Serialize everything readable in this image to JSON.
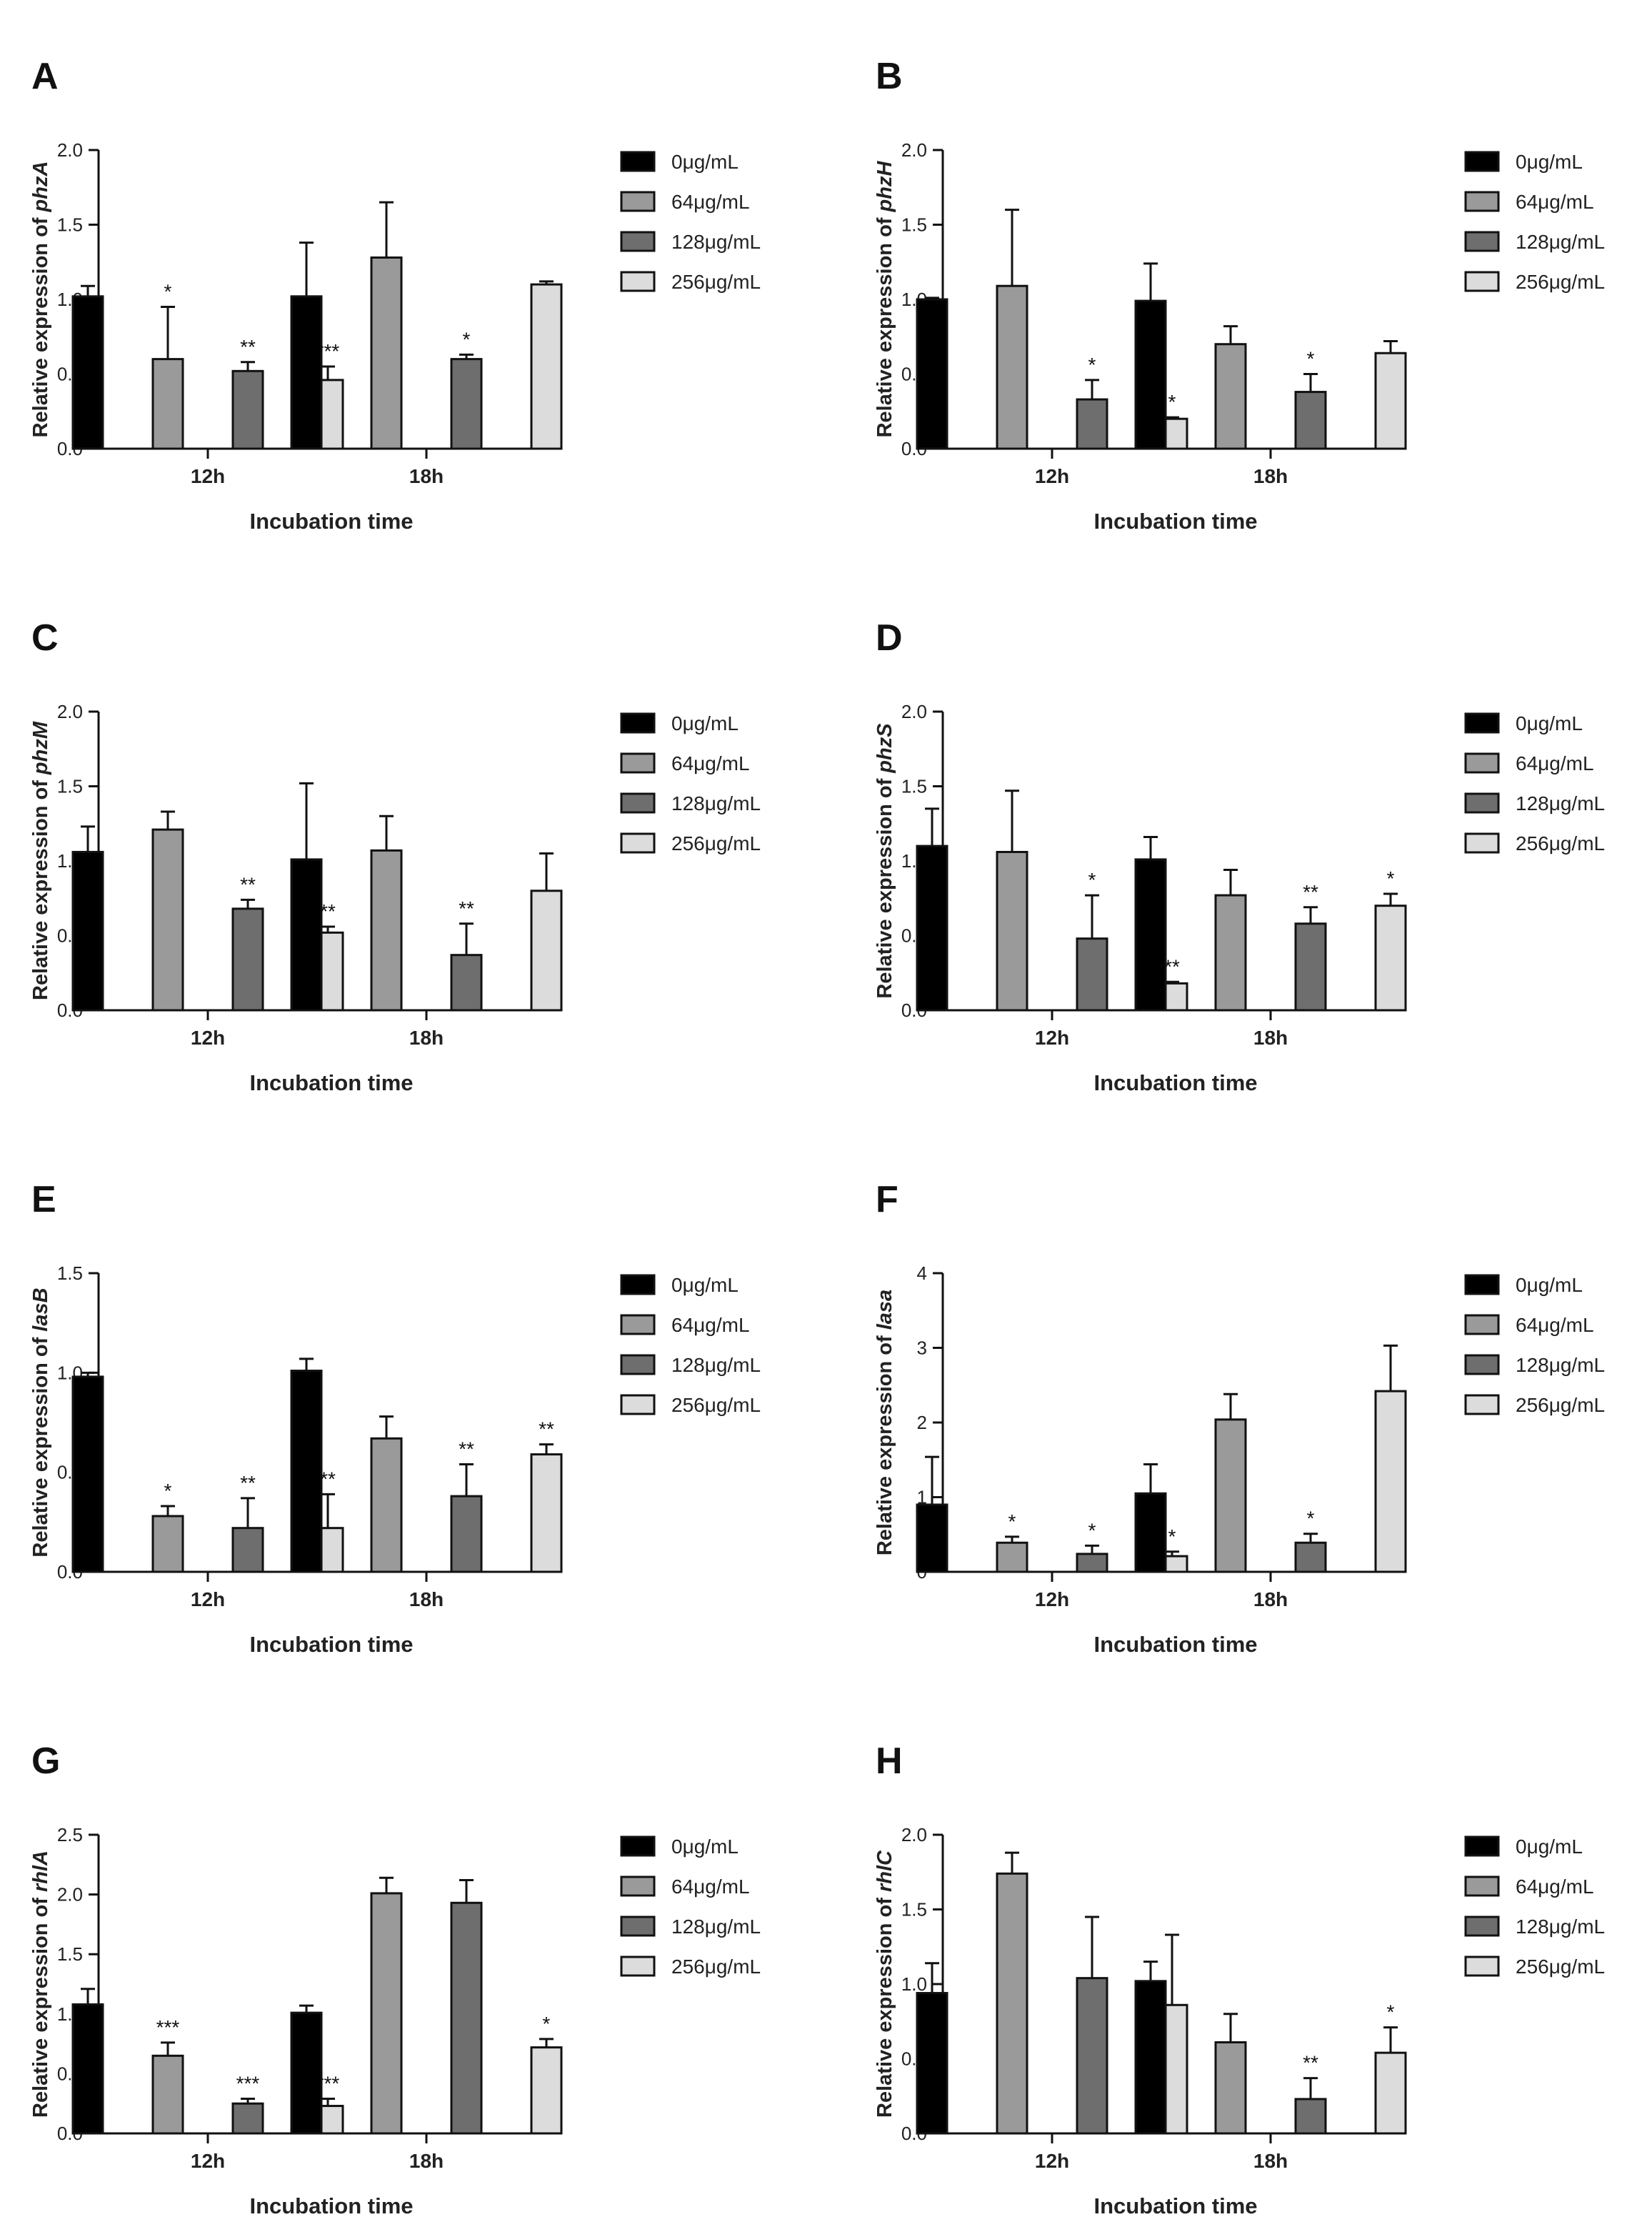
{
  "figure": {
    "type": "multi-panel bar chart"
  },
  "chart_data": [
    {
      "panel": "A",
      "type": "bar",
      "ylabel_prefix": "Relative expression of ",
      "gene": "phzA",
      "xlabel": "Incubation time",
      "categories": [
        "12h",
        "18h"
      ],
      "ylim": [
        0,
        2.0
      ],
      "yticks": [
        "0.0",
        "0.5",
        "1.0",
        "1.5",
        "2.0"
      ],
      "legend": [
        "0μg/mL",
        "64μg/mL",
        "128μg/mL",
        "256μg/mL"
      ],
      "series": [
        {
          "name": "0μg/mL",
          "color": "#000000",
          "values": [
            1.02,
            1.02
          ],
          "errors": [
            0.07,
            0.36
          ],
          "sig": [
            "",
            ""
          ]
        },
        {
          "name": "64μg/mL",
          "color": "#9a9a9a",
          "values": [
            0.6,
            1.28
          ],
          "errors": [
            0.35,
            0.37
          ],
          "sig": [
            "*",
            ""
          ]
        },
        {
          "name": "128μg/mL",
          "color": "#6e6e6e",
          "values": [
            0.52,
            0.6
          ],
          "errors": [
            0.06,
            0.03
          ],
          "sig": [
            "**",
            "*"
          ]
        },
        {
          "name": "256μg/mL",
          "color": "#dcdcdc",
          "values": [
            0.46,
            1.1
          ],
          "errors": [
            0.09,
            0.02
          ],
          "sig": [
            "***",
            ""
          ]
        }
      ]
    },
    {
      "panel": "B",
      "type": "bar",
      "ylabel_prefix": "Relative expression of ",
      "gene": "phzH",
      "xlabel": "Incubation time",
      "categories": [
        "12h",
        "18h"
      ],
      "ylim": [
        0,
        2.0
      ],
      "yticks": [
        "0.0",
        "0.5",
        "1.0",
        "1.5",
        "2.0"
      ],
      "legend": [
        "0μg/mL",
        "64μg/mL",
        "128μg/mL",
        "256μg/mL"
      ],
      "series": [
        {
          "name": "0μg/mL",
          "color": "#000000",
          "values": [
            1.0,
            0.99
          ],
          "errors": [
            0.01,
            0.25
          ],
          "sig": [
            "",
            ""
          ]
        },
        {
          "name": "64μg/mL",
          "color": "#9a9a9a",
          "values": [
            1.09,
            0.7
          ],
          "errors": [
            0.51,
            0.12
          ],
          "sig": [
            "",
            ""
          ]
        },
        {
          "name": "128μg/mL",
          "color": "#6e6e6e",
          "values": [
            0.33,
            0.38
          ],
          "errors": [
            0.13,
            0.12
          ],
          "sig": [
            "*",
            "*"
          ]
        },
        {
          "name": "256μg/mL",
          "color": "#dcdcdc",
          "values": [
            0.2,
            0.64
          ],
          "errors": [
            0.01,
            0.08
          ],
          "sig": [
            "*",
            ""
          ]
        }
      ]
    },
    {
      "panel": "C",
      "type": "bar",
      "ylabel_prefix": "Relative expression of ",
      "gene": "phzM",
      "xlabel": "Incubation time",
      "categories": [
        "12h",
        "18h"
      ],
      "ylim": [
        0,
        2.0
      ],
      "yticks": [
        "0.0",
        "0.5",
        "1.0",
        "1.5",
        "2.0"
      ],
      "legend": [
        "0μg/mL",
        "64μg/mL",
        "128μg/mL",
        "256μg/mL"
      ],
      "series": [
        {
          "name": "0μg/mL",
          "color": "#000000",
          "values": [
            1.06,
            1.01
          ],
          "errors": [
            0.17,
            0.51
          ],
          "sig": [
            "",
            ""
          ]
        },
        {
          "name": "64μg/mL",
          "color": "#9a9a9a",
          "values": [
            1.21,
            1.07
          ],
          "errors": [
            0.12,
            0.23
          ],
          "sig": [
            "",
            ""
          ]
        },
        {
          "name": "128μg/mL",
          "color": "#6e6e6e",
          "values": [
            0.68,
            0.37
          ],
          "errors": [
            0.06,
            0.21
          ],
          "sig": [
            "**",
            "**"
          ]
        },
        {
          "name": "256μg/mL",
          "color": "#dcdcdc",
          "values": [
            0.52,
            0.8
          ],
          "errors": [
            0.04,
            0.25
          ],
          "sig": [
            "**",
            ""
          ]
        }
      ]
    },
    {
      "panel": "D",
      "type": "bar",
      "ylabel_prefix": "Relative expression of ",
      "gene": "phzS",
      "xlabel": "Incubation time",
      "categories": [
        "12h",
        "18h"
      ],
      "ylim": [
        0,
        2.0
      ],
      "yticks": [
        "0.0",
        "0.5",
        "1.0",
        "1.5",
        "2.0"
      ],
      "legend": [
        "0μg/mL",
        "64μg/mL",
        "128μg/mL",
        "256μg/mL"
      ],
      "series": [
        {
          "name": "0μg/mL",
          "color": "#000000",
          "values": [
            1.1,
            1.01
          ],
          "errors": [
            0.25,
            0.15
          ],
          "sig": [
            "",
            ""
          ]
        },
        {
          "name": "64μg/mL",
          "color": "#9a9a9a",
          "values": [
            1.06,
            0.77
          ],
          "errors": [
            0.41,
            0.17
          ],
          "sig": [
            "",
            ""
          ]
        },
        {
          "name": "128μg/mL",
          "color": "#6e6e6e",
          "values": [
            0.48,
            0.58
          ],
          "errors": [
            0.29,
            0.11
          ],
          "sig": [
            "*",
            "**"
          ]
        },
        {
          "name": "256μg/mL",
          "color": "#dcdcdc",
          "values": [
            0.18,
            0.7
          ],
          "errors": [
            0.01,
            0.08
          ],
          "sig": [
            "**",
            "*"
          ]
        }
      ]
    },
    {
      "panel": "E",
      "type": "bar",
      "ylabel_prefix": "Relative expression of ",
      "gene": "lasB",
      "xlabel": "Incubation time",
      "categories": [
        "12h",
        "18h"
      ],
      "ylim": [
        0,
        1.5
      ],
      "yticks": [
        "0.0",
        "0.5",
        "1.0",
        "1.5"
      ],
      "legend": [
        "0μg/mL",
        "64μg/mL",
        "128μg/mL",
        "256μg/mL"
      ],
      "series": [
        {
          "name": "0μg/mL",
          "color": "#000000",
          "values": [
            0.98,
            1.01
          ],
          "errors": [
            0.02,
            0.06
          ],
          "sig": [
            "",
            ""
          ]
        },
        {
          "name": "64μg/mL",
          "color": "#9a9a9a",
          "values": [
            0.28,
            0.67
          ],
          "errors": [
            0.05,
            0.11
          ],
          "sig": [
            "*",
            ""
          ]
        },
        {
          "name": "128μg/mL",
          "color": "#6e6e6e",
          "values": [
            0.22,
            0.38
          ],
          "errors": [
            0.15,
            0.16
          ],
          "sig": [
            "**",
            "**"
          ]
        },
        {
          "name": "256μg/mL",
          "color": "#dcdcdc",
          "values": [
            0.22,
            0.59
          ],
          "errors": [
            0.17,
            0.05
          ],
          "sig": [
            "**",
            "**"
          ]
        }
      ]
    },
    {
      "panel": "F",
      "type": "bar",
      "ylabel_prefix": "Relative expression of ",
      "gene": "lasa",
      "xlabel": "Incubation time",
      "categories": [
        "12h",
        "18h"
      ],
      "ylim": [
        0,
        4
      ],
      "yticks": [
        "0",
        "1",
        "2",
        "3",
        "4"
      ],
      "legend": [
        "0μg/mL",
        "64μg/mL",
        "128μg/mL",
        "256μg/mL"
      ],
      "series": [
        {
          "name": "0μg/mL",
          "color": "#000000",
          "values": [
            0.9,
            1.05
          ],
          "errors": [
            0.64,
            0.39
          ],
          "sig": [
            "",
            ""
          ]
        },
        {
          "name": "64μg/mL",
          "color": "#9a9a9a",
          "values": [
            0.39,
            2.04
          ],
          "errors": [
            0.08,
            0.34
          ],
          "sig": [
            "*",
            ""
          ]
        },
        {
          "name": "128μg/mL",
          "color": "#6e6e6e",
          "values": [
            0.24,
            0.39
          ],
          "errors": [
            0.11,
            0.12
          ],
          "sig": [
            "*",
            "*"
          ]
        },
        {
          "name": "256μg/mL",
          "color": "#dcdcdc",
          "values": [
            0.21,
            2.42
          ],
          "errors": [
            0.06,
            0.61
          ],
          "sig": [
            "*",
            ""
          ]
        }
      ]
    },
    {
      "panel": "G",
      "type": "bar",
      "ylabel_prefix": "Relative expression of ",
      "gene": "rhlA",
      "xlabel": "Incubation time",
      "categories": [
        "12h",
        "18h"
      ],
      "ylim": [
        0,
        2.5
      ],
      "yticks": [
        "0.0",
        "0.5",
        "1.0",
        "1.5",
        "2.0",
        "2.5"
      ],
      "legend": [
        "0μg/mL",
        "64μg/mL",
        "128μg/mL",
        "256μg/mL"
      ],
      "series": [
        {
          "name": "0μg/mL",
          "color": "#000000",
          "values": [
            1.08,
            1.01
          ],
          "errors": [
            0.13,
            0.06
          ],
          "sig": [
            "",
            ""
          ]
        },
        {
          "name": "64μg/mL",
          "color": "#9a9a9a",
          "values": [
            0.65,
            2.01
          ],
          "errors": [
            0.11,
            0.13
          ],
          "sig": [
            "***",
            ""
          ]
        },
        {
          "name": "128μg/mL",
          "color": "#6e6e6e",
          "values": [
            0.25,
            1.93
          ],
          "errors": [
            0.04,
            0.19
          ],
          "sig": [
            "***",
            ""
          ]
        },
        {
          "name": "256μg/mL",
          "color": "#dcdcdc",
          "values": [
            0.23,
            0.72
          ],
          "errors": [
            0.06,
            0.07
          ],
          "sig": [
            "***",
            "*"
          ]
        }
      ]
    },
    {
      "panel": "H",
      "type": "bar",
      "ylabel_prefix": "Relative expression of ",
      "gene": "rhlC",
      "xlabel": "Incubation time",
      "categories": [
        "12h",
        "18h"
      ],
      "ylim": [
        0,
        2.0
      ],
      "yticks": [
        "0.0",
        "0.5",
        "1.0",
        "1.5",
        "2.0"
      ],
      "legend": [
        "0μg/mL",
        "64μg/mL",
        "128μg/mL",
        "256μg/mL"
      ],
      "series": [
        {
          "name": "0μg/mL",
          "color": "#000000",
          "values": [
            0.94,
            1.02
          ],
          "errors": [
            0.2,
            0.13
          ],
          "sig": [
            "",
            ""
          ]
        },
        {
          "name": "64μg/mL",
          "color": "#9a9a9a",
          "values": [
            1.74,
            0.61
          ],
          "errors": [
            0.14,
            0.19
          ],
          "sig": [
            "",
            ""
          ]
        },
        {
          "name": "128μg/mL",
          "color": "#6e6e6e",
          "values": [
            1.04,
            0.23
          ],
          "errors": [
            0.41,
            0.14
          ],
          "sig": [
            "",
            "**"
          ]
        },
        {
          "name": "256μg/mL",
          "color": "#dcdcdc",
          "values": [
            0.86,
            0.54
          ],
          "errors": [
            0.47,
            0.17
          ],
          "sig": [
            "",
            "*"
          ]
        }
      ]
    }
  ]
}
